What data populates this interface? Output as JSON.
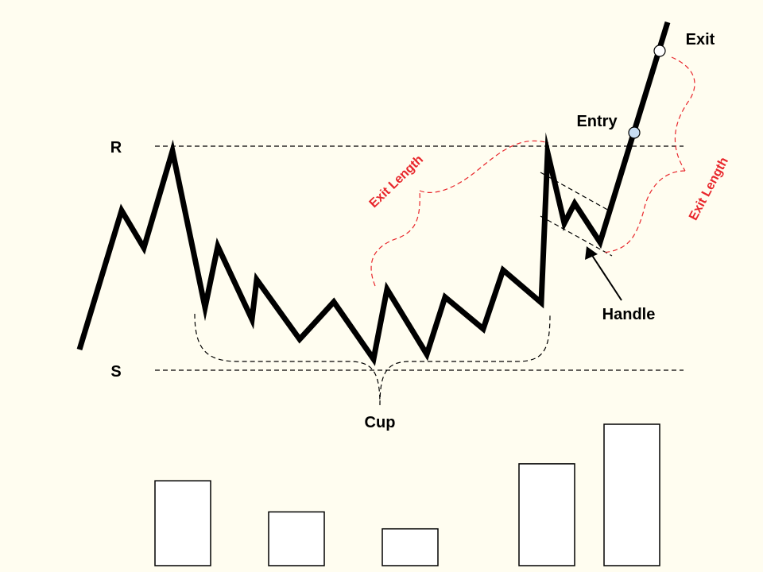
{
  "labels": {
    "resistance": "R",
    "support": "S",
    "cup": "Cup",
    "handle": "Handle",
    "entry": "Entry",
    "exit": "Exit",
    "exit_length_left": "Exit Length",
    "exit_length_right": "Exit Length"
  },
  "colors": {
    "background": "#FFFDF0",
    "price_line": "#000000",
    "annotation_red": "#E8262B",
    "marker_entry": "#C8DDF2",
    "marker_exit": "#FFFFFF"
  },
  "volume_bars": {
    "relative_heights": [
      0.6,
      0.38,
      0.26,
      0.72,
      1.0
    ]
  }
}
